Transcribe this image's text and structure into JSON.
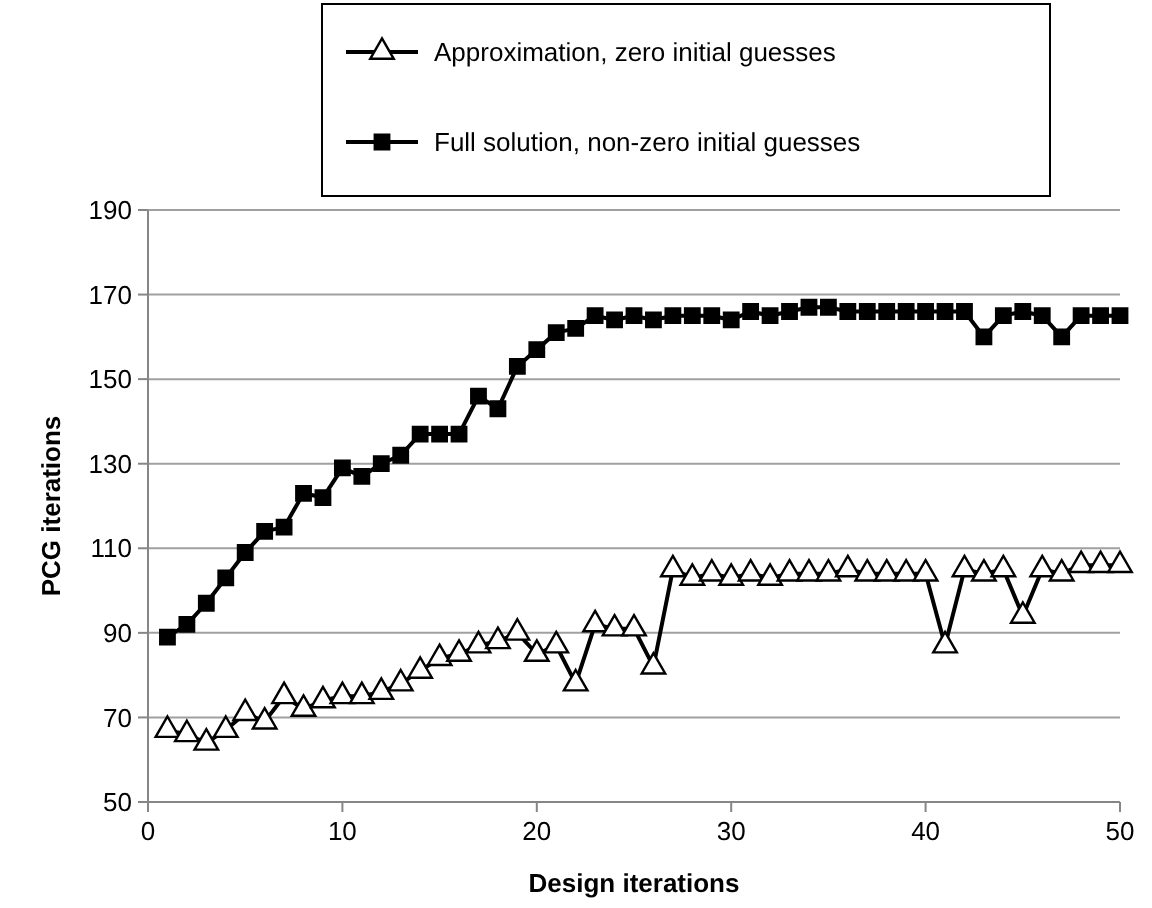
{
  "chart_data": {
    "type": "line",
    "xlabel": "Design iterations",
    "ylabel": "PCG iterations",
    "x": [
      1,
      2,
      3,
      4,
      5,
      6,
      7,
      8,
      9,
      10,
      11,
      12,
      13,
      14,
      15,
      16,
      17,
      18,
      19,
      20,
      21,
      22,
      23,
      24,
      25,
      26,
      27,
      28,
      29,
      30,
      31,
      32,
      33,
      34,
      35,
      36,
      37,
      38,
      39,
      40,
      41,
      42,
      43,
      44,
      45,
      46,
      47,
      48,
      49,
      50
    ],
    "series": [
      {
        "name": "Approximation, zero initial guesses",
        "color": "#000000",
        "marker": "triangle",
        "values": [
          67,
          66,
          64,
          67,
          71,
          69,
          75,
          72,
          74,
          75,
          75,
          76,
          78,
          81,
          84,
          85,
          87,
          88,
          90,
          85,
          87,
          78,
          92,
          91,
          91,
          82,
          105,
          103,
          104,
          103,
          104,
          103,
          104,
          104,
          104,
          105,
          104,
          104,
          104,
          104,
          87,
          105,
          104,
          105,
          94,
          105,
          104,
          106,
          106,
          106
        ]
      },
      {
        "name": "Full solution, non-zero initial guesses",
        "color": "#000000",
        "marker": "square",
        "values": [
          89,
          92,
          97,
          103,
          109,
          114,
          115,
          123,
          122,
          129,
          127,
          130,
          132,
          137,
          137,
          137,
          146,
          143,
          153,
          157,
          161,
          162,
          165,
          164,
          165,
          164,
          165,
          165,
          165,
          164,
          166,
          165,
          166,
          167,
          167,
          166,
          166,
          166,
          166,
          166,
          166,
          166,
          160,
          165,
          166,
          165,
          160,
          165,
          165,
          165
        ]
      }
    ],
    "xlim": [
      0,
      50
    ],
    "xticks": [
      0,
      10,
      20,
      30,
      40,
      50
    ],
    "ylim": [
      50,
      190
    ],
    "yticks": [
      50,
      70,
      90,
      110,
      130,
      150,
      170,
      190
    ],
    "grid": "y",
    "legend": "top",
    "line_style": "solid"
  }
}
